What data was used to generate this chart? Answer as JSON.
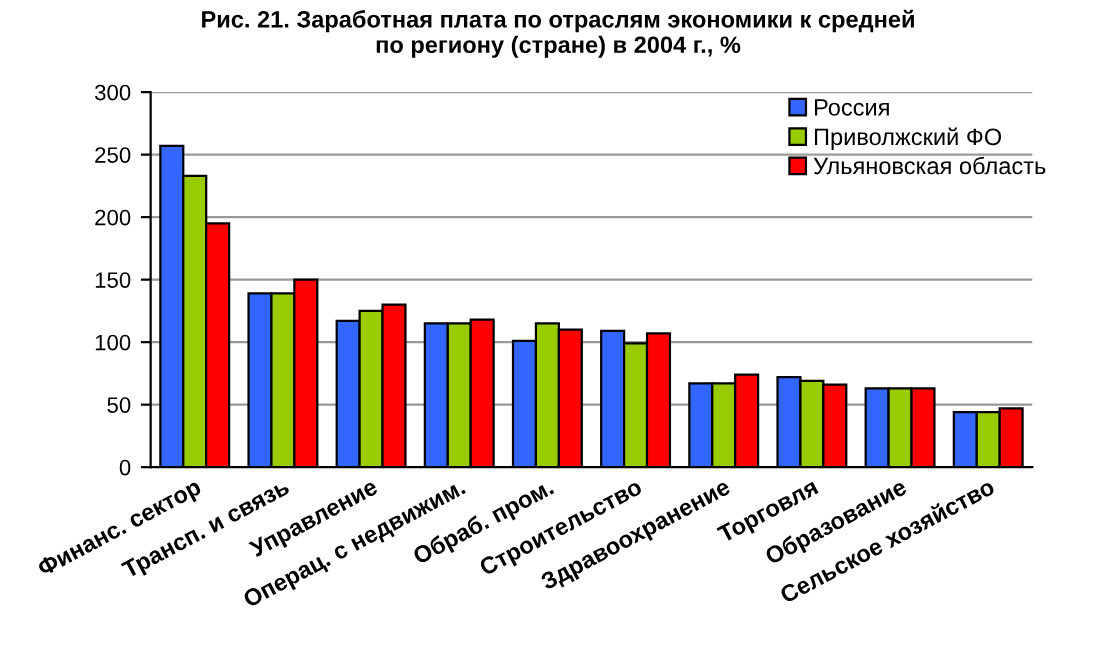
{
  "chart_data": {
    "type": "bar",
    "title": "Рис. 21. Заработная плата по отраслям экономики к средней\nпо региону (стране) в 2004 г., %",
    "categories": [
      "Финанс. сектор",
      "Трансп. и связь",
      "Управление",
      "Операц. с недвижим.",
      "Обраб. пром.",
      "Строительство",
      "Здравоохранение",
      "Торговля",
      "Образование",
      "Сельское хозяйство"
    ],
    "series": [
      {
        "name": "Россия",
        "color": "#3366ff",
        "values": [
          257,
          139,
          117,
          115,
          101,
          109,
          67,
          72,
          63,
          44
        ]
      },
      {
        "name": "Приволжский ФО",
        "color": "#99cc00",
        "values": [
          233,
          139,
          125,
          115,
          115,
          99,
          67,
          69,
          63,
          44
        ]
      },
      {
        "name": "Ульяновская область",
        "color": "#ff0000",
        "values": [
          195,
          150,
          130,
          118,
          110,
          107,
          74,
          66,
          63,
          47
        ]
      }
    ],
    "ylim": [
      0,
      300
    ],
    "yticks": [
      0,
      50,
      100,
      150,
      200,
      250,
      300
    ],
    "grid": "y",
    "legend": "top right"
  }
}
